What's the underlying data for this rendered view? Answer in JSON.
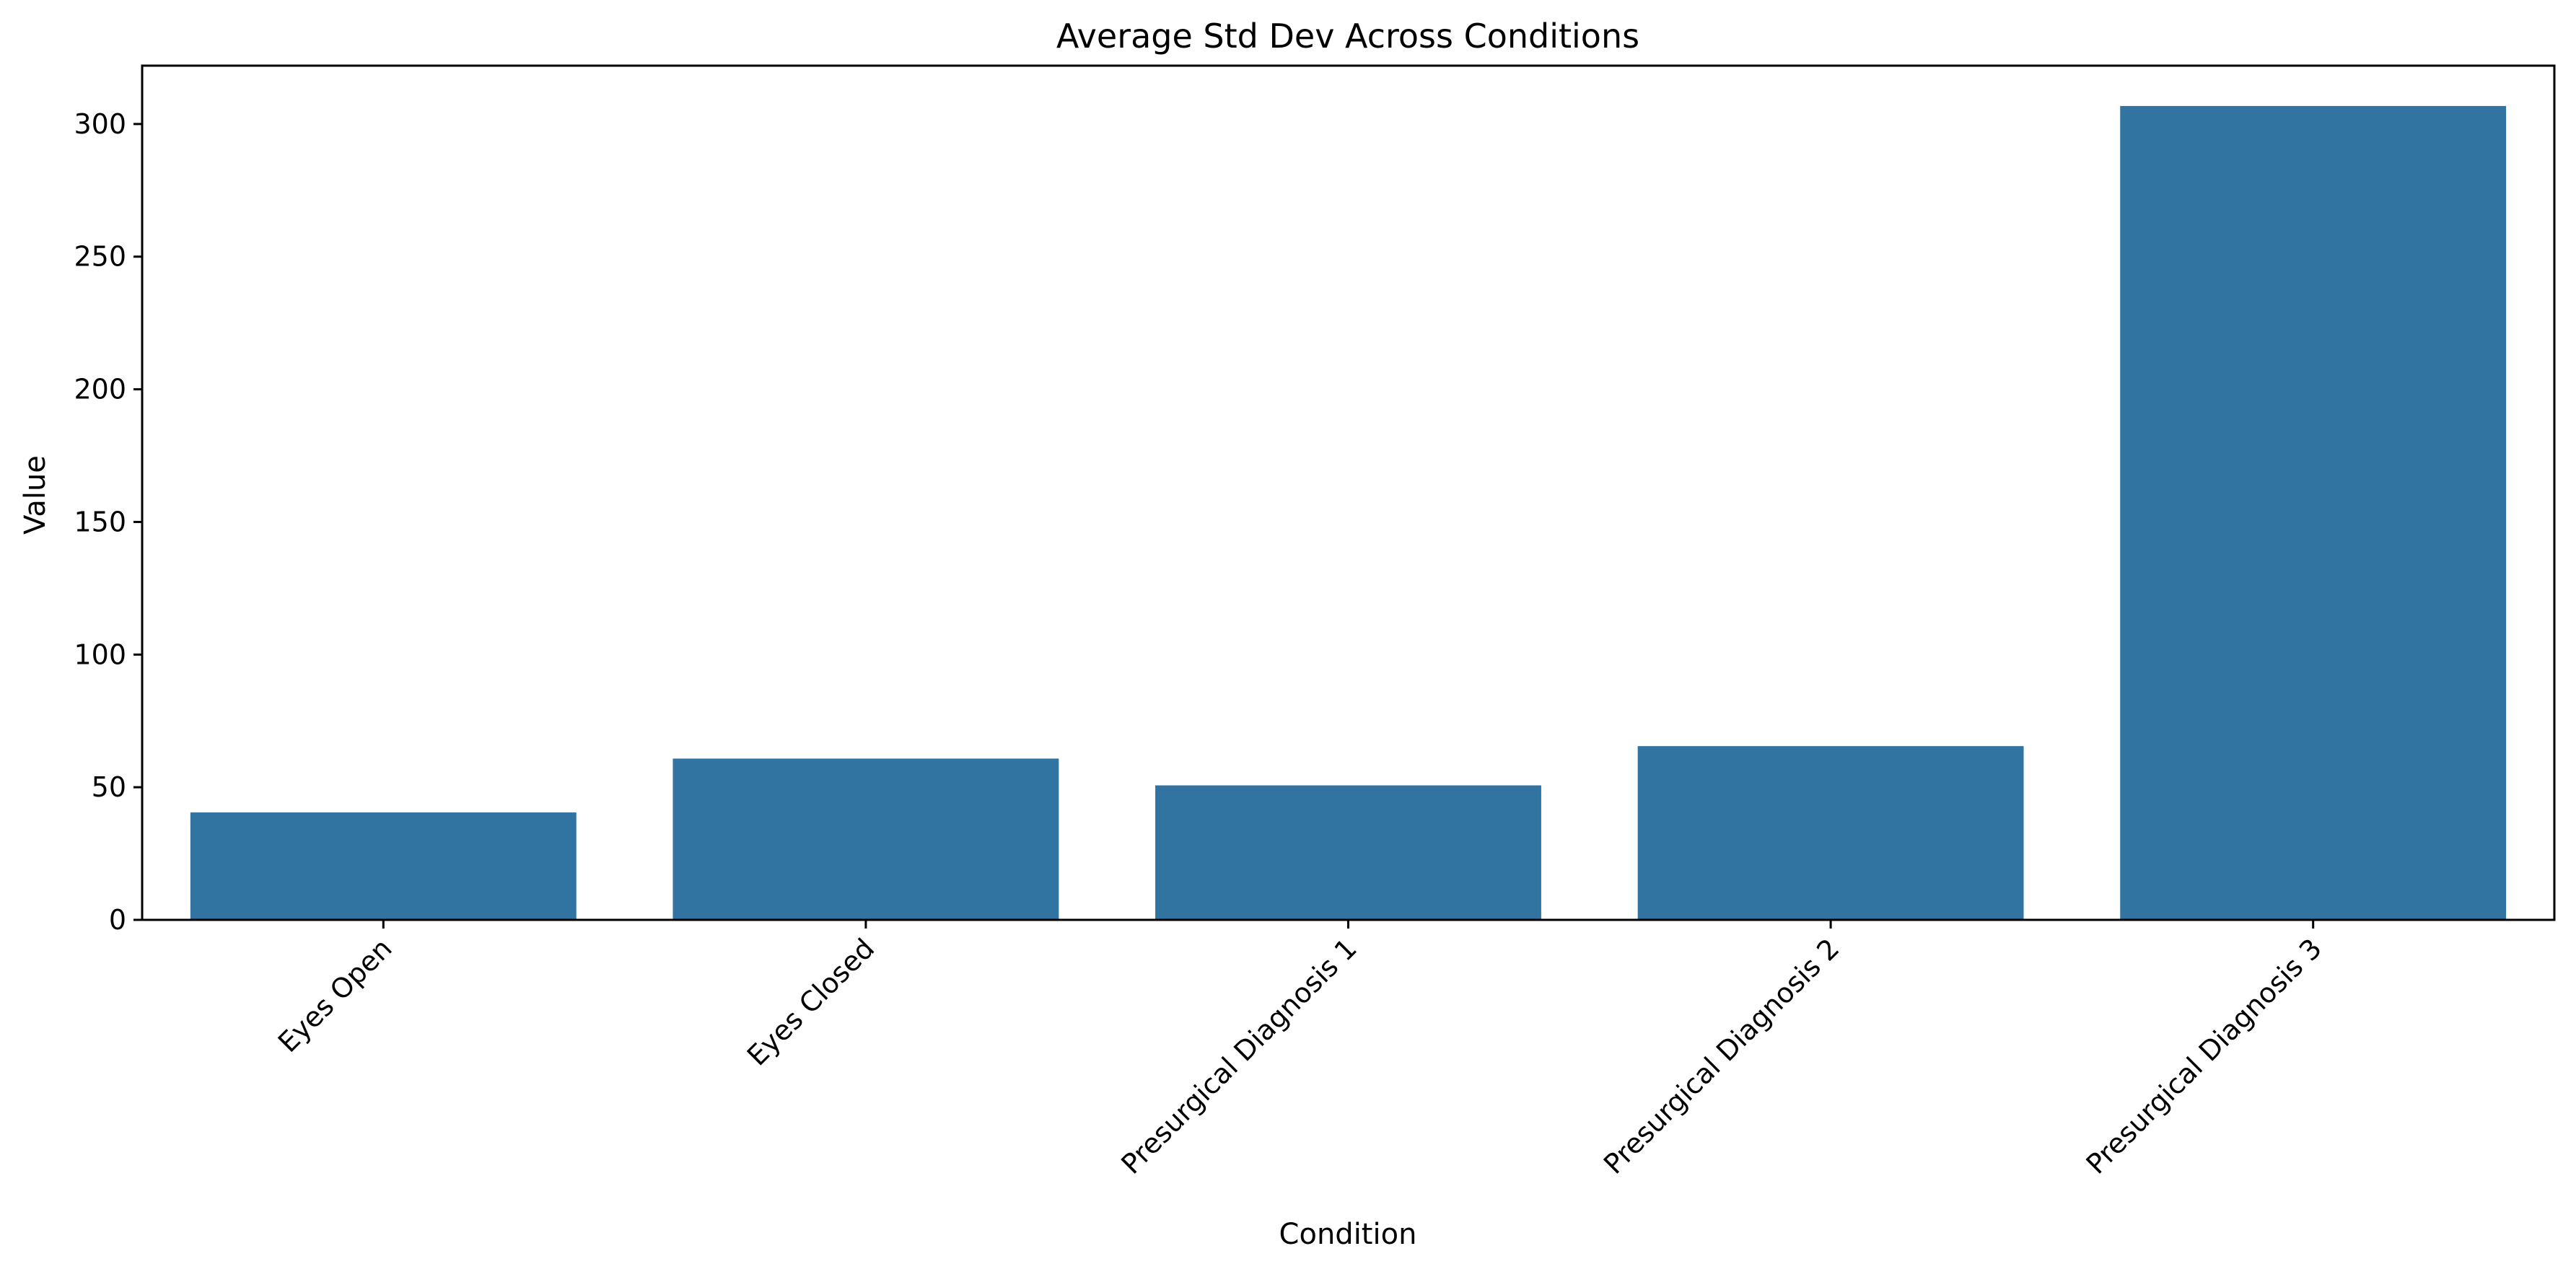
{
  "chart_data": {
    "type": "bar",
    "title": "Average Std Dev Across Conditions",
    "xlabel": "Condition",
    "ylabel": "Value",
    "categories": [
      "Eyes Open",
      "Eyes Closed",
      "Presurgical Diagnosis 1",
      "Presurgical Diagnosis 2",
      "Presurgical Diagnosis 3"
    ],
    "values": [
      40.5,
      60.8,
      50.7,
      65.5,
      306.8
    ],
    "ylim": [
      0,
      322
    ],
    "yticks": [
      0,
      50,
      100,
      150,
      200,
      250,
      300
    ],
    "bar_color": "#3274a1",
    "grid": false,
    "legend": "none",
    "xtick_rotation": 45
  }
}
